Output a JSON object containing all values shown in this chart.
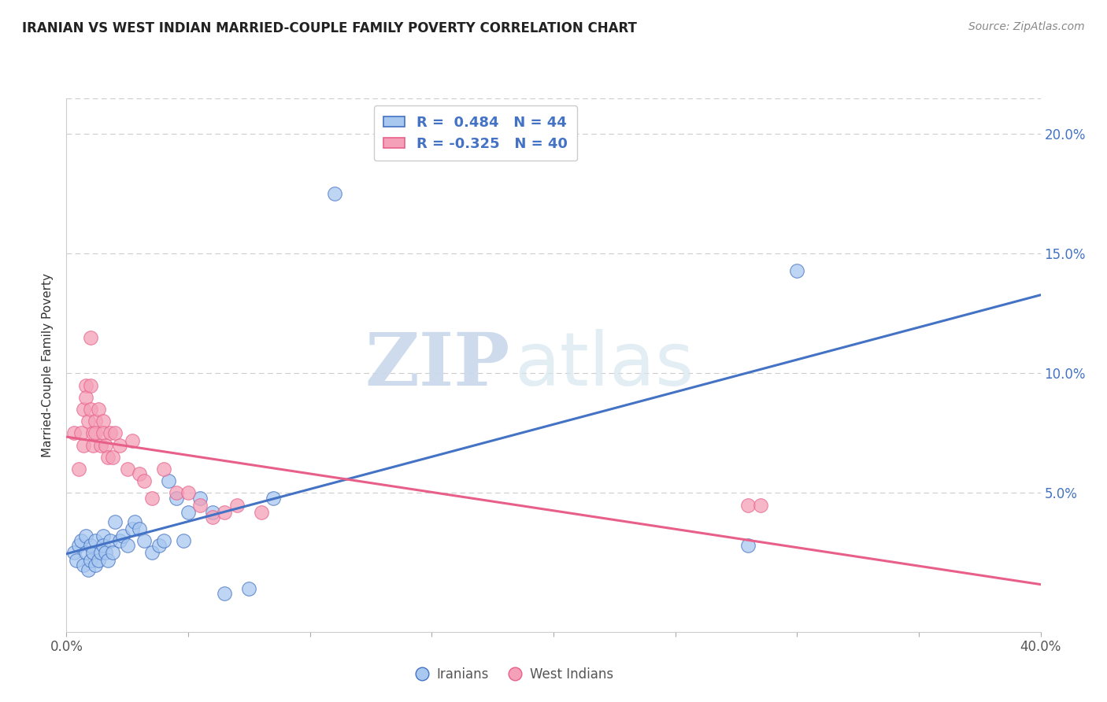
{
  "title": "IRANIAN VS WEST INDIAN MARRIED-COUPLE FAMILY POVERTY CORRELATION CHART",
  "source": "Source: ZipAtlas.com",
  "ylabel": "Married-Couple Family Poverty",
  "right_yticks": [
    "20.0%",
    "15.0%",
    "10.0%",
    "5.0%"
  ],
  "right_ytick_vals": [
    0.2,
    0.15,
    0.1,
    0.05
  ],
  "xmin": 0.0,
  "xmax": 0.4,
  "ymin": -0.008,
  "ymax": 0.215,
  "iranian_color": "#A8C8F0",
  "west_indian_color": "#F4A0B8",
  "iranian_line_color": "#4472C4",
  "west_indian_line_color": "#E8608A",
  "R_iranian": 0.484,
  "N_iranian": 44,
  "R_west_indian": -0.325,
  "N_west_indian": 40,
  "iranians_scatter": [
    [
      0.003,
      0.025
    ],
    [
      0.004,
      0.022
    ],
    [
      0.005,
      0.028
    ],
    [
      0.006,
      0.03
    ],
    [
      0.007,
      0.02
    ],
    [
      0.008,
      0.025
    ],
    [
      0.008,
      0.032
    ],
    [
      0.009,
      0.018
    ],
    [
      0.01,
      0.022
    ],
    [
      0.01,
      0.028
    ],
    [
      0.011,
      0.025
    ],
    [
      0.012,
      0.02
    ],
    [
      0.012,
      0.03
    ],
    [
      0.013,
      0.022
    ],
    [
      0.014,
      0.025
    ],
    [
      0.015,
      0.032
    ],
    [
      0.015,
      0.028
    ],
    [
      0.016,
      0.025
    ],
    [
      0.017,
      0.022
    ],
    [
      0.018,
      0.03
    ],
    [
      0.019,
      0.025
    ],
    [
      0.02,
      0.038
    ],
    [
      0.022,
      0.03
    ],
    [
      0.023,
      0.032
    ],
    [
      0.025,
      0.028
    ],
    [
      0.027,
      0.035
    ],
    [
      0.028,
      0.038
    ],
    [
      0.03,
      0.035
    ],
    [
      0.032,
      0.03
    ],
    [
      0.035,
      0.025
    ],
    [
      0.038,
      0.028
    ],
    [
      0.04,
      0.03
    ],
    [
      0.042,
      0.055
    ],
    [
      0.045,
      0.048
    ],
    [
      0.048,
      0.03
    ],
    [
      0.05,
      0.042
    ],
    [
      0.055,
      0.048
    ],
    [
      0.06,
      0.042
    ],
    [
      0.065,
      0.008
    ],
    [
      0.075,
      0.01
    ],
    [
      0.085,
      0.048
    ],
    [
      0.11,
      0.175
    ],
    [
      0.28,
      0.028
    ],
    [
      0.3,
      0.143
    ]
  ],
  "west_indian_scatter": [
    [
      0.003,
      0.075
    ],
    [
      0.005,
      0.06
    ],
    [
      0.006,
      0.075
    ],
    [
      0.007,
      0.085
    ],
    [
      0.007,
      0.07
    ],
    [
      0.008,
      0.095
    ],
    [
      0.008,
      0.09
    ],
    [
      0.009,
      0.08
    ],
    [
      0.01,
      0.115
    ],
    [
      0.01,
      0.095
    ],
    [
      0.01,
      0.085
    ],
    [
      0.011,
      0.075
    ],
    [
      0.011,
      0.07
    ],
    [
      0.012,
      0.08
    ],
    [
      0.012,
      0.075
    ],
    [
      0.013,
      0.085
    ],
    [
      0.014,
      0.07
    ],
    [
      0.015,
      0.08
    ],
    [
      0.015,
      0.075
    ],
    [
      0.016,
      0.07
    ],
    [
      0.017,
      0.065
    ],
    [
      0.018,
      0.075
    ],
    [
      0.019,
      0.065
    ],
    [
      0.02,
      0.075
    ],
    [
      0.022,
      0.07
    ],
    [
      0.025,
      0.06
    ],
    [
      0.027,
      0.072
    ],
    [
      0.03,
      0.058
    ],
    [
      0.032,
      0.055
    ],
    [
      0.035,
      0.048
    ],
    [
      0.04,
      0.06
    ],
    [
      0.045,
      0.05
    ],
    [
      0.05,
      0.05
    ],
    [
      0.055,
      0.045
    ],
    [
      0.06,
      0.04
    ],
    [
      0.065,
      0.042
    ],
    [
      0.07,
      0.045
    ],
    [
      0.08,
      0.042
    ],
    [
      0.28,
      0.045
    ],
    [
      0.285,
      0.045
    ]
  ],
  "watermark_zip": "ZIP",
  "watermark_atlas": "atlas",
  "background_color": "#FFFFFF",
  "grid_color": "#CCCCCC"
}
